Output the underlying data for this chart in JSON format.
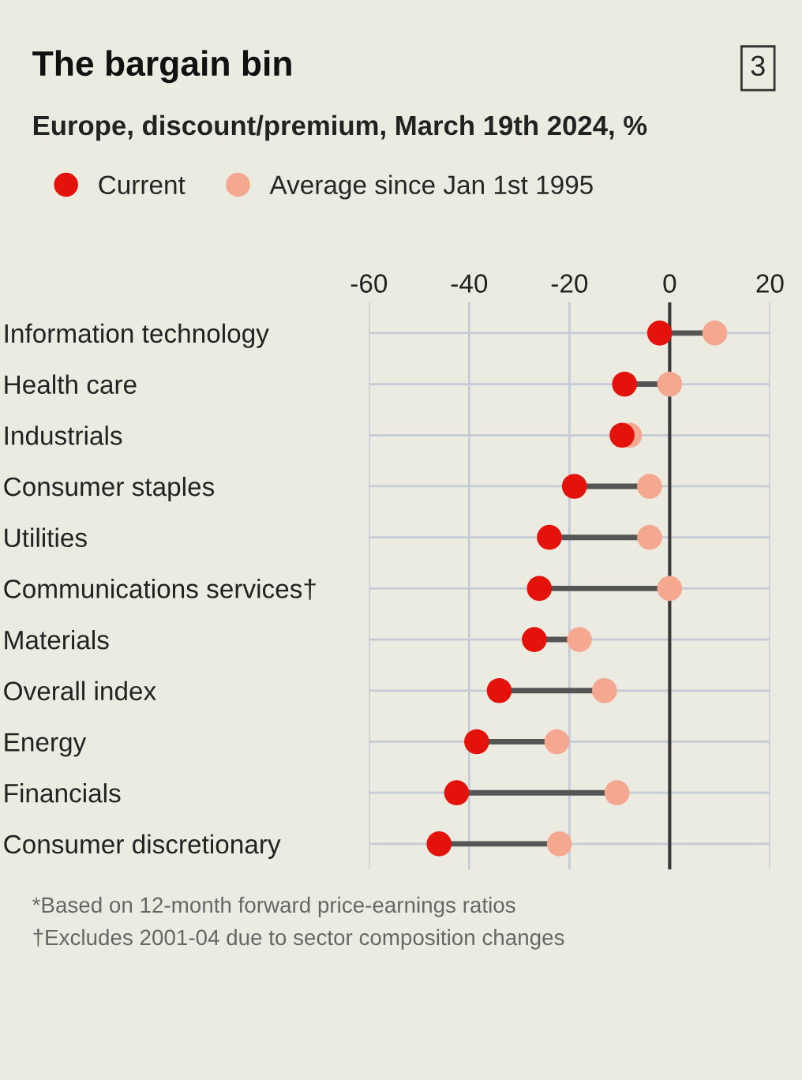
{
  "chart_data": {
    "type": "scatter",
    "title": "The bargain bin",
    "subtitle": "Europe, discount/premium, March 19th 2024, %",
    "categories": [
      "Information technology",
      "Health care",
      "Industrials",
      "Consumer staples",
      "Utilities",
      "Communications services†",
      "Materials",
      "Overall index",
      "Energy",
      "Financials",
      "Consumer discretionary"
    ],
    "series": [
      {
        "name": "Average since Jan 1st 1995",
        "color": "#f4a88f",
        "values": [
          9,
          0,
          -8,
          -4,
          -4,
          0,
          -18,
          -13,
          -22.5,
          -10.5,
          -22
        ]
      },
      {
        "name": "Current",
        "color": "#e3120b",
        "values": [
          -2,
          -9,
          -9.5,
          -19,
          -24,
          -26,
          -27,
          -34,
          -38.5,
          -42.5,
          -46
        ]
      }
    ],
    "orientation": "horizontal",
    "xlim": [
      -60,
      20
    ],
    "xticks": [
      -60,
      -40,
      -20,
      0,
      20
    ],
    "grid": true,
    "legend": "top left",
    "marker": "circle",
    "ref_lines": [
      {
        "axis": "x",
        "value": 0,
        "color": "#3a3a3a"
      }
    ],
    "annotations": [
      "3",
      "*Based on 12-month forward price-earnings ratios",
      "†Excludes 2001-04 due to sector composition changes"
    ]
  }
}
